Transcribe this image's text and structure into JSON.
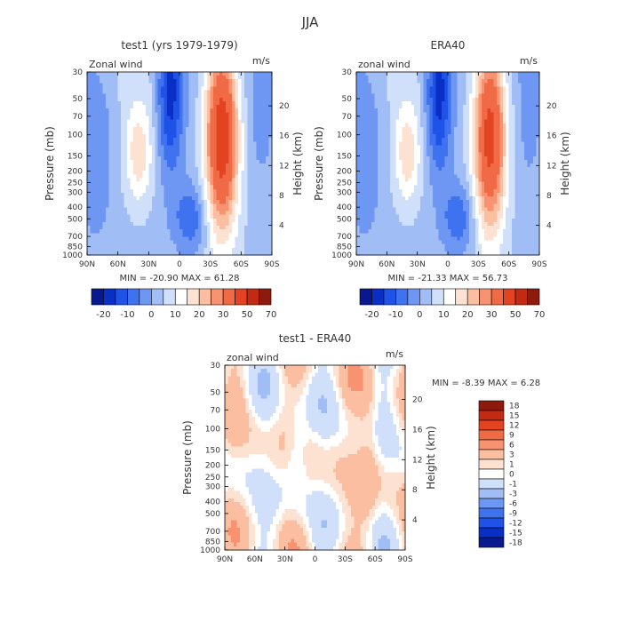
{
  "title": "JJA",
  "palettes": {
    "full": [
      "#08188f",
      "#0a2fc7",
      "#1f52e6",
      "#3f72ee",
      "#6d97f2",
      "#a1bdf6",
      "#d0e0fb",
      "#ffffff",
      "#fde2d2",
      "#fbbea0",
      "#f79371",
      "#f06a45",
      "#e34320",
      "#c22a12",
      "#8e1a0d"
    ],
    "diff": [
      "#08188f",
      "#0a2fc7",
      "#1f52e6",
      "#3f72ee",
      "#6d97f2",
      "#a1bdf6",
      "#d0e0fb",
      "#ffffff",
      "#fde2d2",
      "#fbbea0",
      "#f79371",
      "#f06a45",
      "#e34320",
      "#c22a12",
      "#8e1a0d"
    ]
  },
  "chart_data": [
    {
      "type": "heatmap",
      "title": "test1 (yrs 1979-1979)",
      "corner_left": "Zonal wind",
      "corner_right": "m/s",
      "ylabel": "Pressure (mb)",
      "y2label": "Height (km)",
      "x_ticks": [
        "90N",
        "60N",
        "30N",
        "0",
        "30S",
        "60S",
        "90S"
      ],
      "y_ticks": [
        "30",
        "50",
        "70",
        "100",
        "150",
        "200",
        "250",
        "300",
        "400",
        "500",
        "700",
        "850",
        "1000"
      ],
      "y2_ticks": [
        "20",
        "16",
        "12",
        "8",
        "4"
      ],
      "stats": "MIN = -20.90   MAX = 61.28",
      "min": -20.9,
      "max": 61.28,
      "levels": [
        -20,
        -10,
        0,
        10,
        20,
        30,
        50,
        70
      ],
      "colorbar_labels": [
        "-20",
        "-10",
        "0",
        "10",
        "20",
        "30",
        "50",
        "70"
      ]
    },
    {
      "type": "heatmap",
      "title": "ERA40",
      "corner_left": "zonal wind",
      "corner_right": "m/s",
      "ylabel": "Pressure (mb)",
      "y2label": "Height (km)",
      "x_ticks": [
        "90N",
        "60N",
        "30N",
        "0",
        "30S",
        "60S",
        "90S"
      ],
      "y_ticks": [
        "30",
        "50",
        "70",
        "100",
        "150",
        "200",
        "250",
        "300",
        "400",
        "500",
        "700",
        "850",
        "1000"
      ],
      "y2_ticks": [
        "20",
        "16",
        "12",
        "8",
        "4"
      ],
      "stats": "MIN = -21.33   MAX = 56.73",
      "min": -21.33,
      "max": 56.73,
      "levels": [
        -20,
        -10,
        0,
        10,
        20,
        30,
        50,
        70
      ],
      "colorbar_labels": [
        "-20",
        "-10",
        "0",
        "10",
        "20",
        "30",
        "50",
        "70"
      ]
    },
    {
      "type": "heatmap",
      "title": "test1 - ERA40",
      "corner_left": "zonal wind",
      "corner_right": "m/s",
      "ylabel": "Pressure (mb)",
      "y2label": "Height (km)",
      "x_ticks": [
        "90N",
        "60N",
        "30N",
        "0",
        "30S",
        "60S",
        "90S"
      ],
      "y_ticks": [
        "30",
        "50",
        "70",
        "100",
        "150",
        "200",
        "250",
        "300",
        "400",
        "500",
        "700",
        "850",
        "1000"
      ],
      "y2_ticks": [
        "20",
        "16",
        "12",
        "8",
        "4"
      ],
      "stats": "MIN =   -8.39   MAX =    6.28",
      "min": -8.39,
      "max": 6.28,
      "levels": [
        18,
        15,
        12,
        9,
        6,
        3,
        1,
        0,
        -1,
        -3,
        -6,
        -9,
        -12,
        -15,
        -18
      ],
      "colorbar_labels": [
        "18",
        "15",
        "12",
        "9",
        "6",
        "3",
        "1",
        "0",
        "-1",
        "-3",
        "-6",
        "-9",
        "-12",
        "-15",
        "-18"
      ]
    }
  ]
}
